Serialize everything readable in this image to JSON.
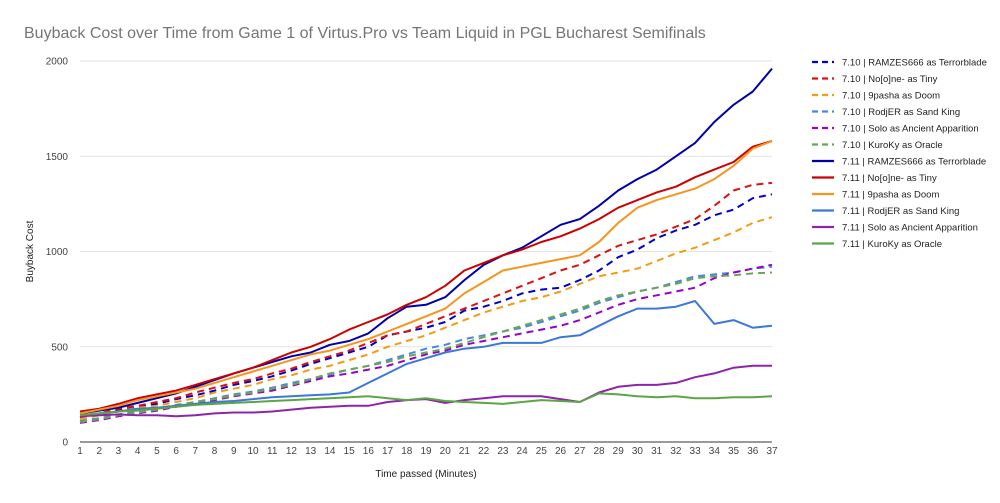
{
  "chart_data": {
    "type": "line",
    "title": "Buyback Cost over Time from Game 1 of Virtus.Pro vs Team Liquid in PGL Bucharest Semifinals",
    "xlabel": "Time passed (Minutes)",
    "ylabel": "Buyback Cost",
    "x": [
      1,
      2,
      3,
      4,
      5,
      6,
      7,
      8,
      9,
      10,
      11,
      12,
      13,
      14,
      15,
      16,
      17,
      18,
      19,
      20,
      21,
      22,
      23,
      24,
      25,
      26,
      27,
      28,
      29,
      30,
      31,
      32,
      33,
      34,
      35,
      36,
      37
    ],
    "ylim": [
      0,
      2000
    ],
    "yticks": [
      0,
      500,
      1000,
      1500,
      2000
    ],
    "grid": "horizontal",
    "legend": "right",
    "series": [
      {
        "name": "7.10 | RAMZES666 as Terrorblade",
        "color": "#0000cc",
        "dash": true,
        "values": [
          130,
          150,
          165,
          185,
          200,
          225,
          245,
          270,
          300,
          320,
          345,
          375,
          410,
          440,
          470,
          500,
          560,
          580,
          600,
          630,
          690,
          710,
          740,
          780,
          800,
          810,
          850,
          900,
          970,
          1010,
          1070,
          1110,
          1140,
          1190,
          1220,
          1280,
          1300
        ]
      },
      {
        "name": "7.10 | No[o]ne- as Tiny",
        "color": "#dd1111",
        "dash": true,
        "values": [
          130,
          150,
          175,
          190,
          210,
          230,
          260,
          285,
          310,
          330,
          360,
          385,
          420,
          450,
          480,
          520,
          560,
          580,
          620,
          660,
          700,
          740,
          780,
          820,
          860,
          900,
          930,
          980,
          1030,
          1060,
          1090,
          1130,
          1170,
          1240,
          1320,
          1350,
          1360
        ]
      },
      {
        "name": "7.10 | 9pasha as Doom",
        "color": "#f39c12",
        "dash": true,
        "values": [
          120,
          140,
          160,
          180,
          190,
          210,
          230,
          260,
          280,
          300,
          330,
          350,
          380,
          400,
          430,
          460,
          500,
          530,
          560,
          600,
          640,
          680,
          710,
          740,
          760,
          790,
          830,
          870,
          890,
          910,
          950,
          990,
          1020,
          1060,
          1100,
          1150,
          1180
        ]
      },
      {
        "name": "7.10 | RodjER as Sand King",
        "color": "#4a86e8",
        "dash": true,
        "values": [
          110,
          125,
          145,
          160,
          175,
          195,
          210,
          230,
          250,
          265,
          285,
          310,
          330,
          355,
          380,
          400,
          430,
          460,
          490,
          510,
          540,
          560,
          580,
          600,
          630,
          660,
          690,
          730,
          760,
          790,
          810,
          840,
          870,
          880,
          890,
          910,
          920
        ]
      },
      {
        "name": "7.10 | Solo as Ancient Apparition",
        "color": "#9900cc",
        "dash": true,
        "values": [
          100,
          115,
          135,
          150,
          165,
          185,
          200,
          220,
          240,
          255,
          270,
          295,
          320,
          345,
          360,
          380,
          400,
          430,
          460,
          480,
          510,
          530,
          550,
          570,
          590,
          610,
          640,
          680,
          720,
          750,
          770,
          790,
          810,
          860,
          890,
          910,
          930
        ]
      },
      {
        "name": "7.10 | KuroKy as Oracle",
        "color": "#6aa84f",
        "dash": true,
        "values": [
          105,
          120,
          140,
          155,
          170,
          190,
          210,
          225,
          245,
          260,
          280,
          300,
          330,
          360,
          380,
          400,
          420,
          450,
          470,
          490,
          520,
          550,
          580,
          610,
          640,
          670,
          700,
          740,
          770,
          790,
          810,
          830,
          860,
          870,
          875,
          885,
          890
        ]
      },
      {
        "name": "7.11 | RAMZES666 as Terrorblade",
        "color": "#0000aa",
        "dash": false,
        "values": [
          150,
          165,
          180,
          205,
          230,
          255,
          290,
          325,
          360,
          390,
          420,
          450,
          470,
          510,
          530,
          570,
          650,
          710,
          720,
          760,
          850,
          930,
          980,
          1020,
          1080,
          1140,
          1170,
          1240,
          1320,
          1380,
          1430,
          1500,
          1570,
          1680,
          1770,
          1840,
          1960
        ]
      },
      {
        "name": "7.11 | No[o]ne- as Tiny",
        "color": "#cc0000",
        "dash": false,
        "values": [
          160,
          175,
          200,
          230,
          250,
          270,
          300,
          330,
          360,
          390,
          430,
          470,
          500,
          540,
          590,
          630,
          670,
          720,
          760,
          820,
          900,
          940,
          980,
          1010,
          1050,
          1080,
          1120,
          1170,
          1230,
          1270,
          1310,
          1340,
          1390,
          1430,
          1470,
          1550,
          1580
        ]
      },
      {
        "name": "7.11 | 9pasha as Doom",
        "color": "#f7941d",
        "dash": false,
        "values": [
          150,
          170,
          190,
          220,
          240,
          260,
          280,
          310,
          340,
          370,
          400,
          430,
          460,
          480,
          510,
          540,
          580,
          620,
          660,
          700,
          780,
          840,
          900,
          920,
          940,
          960,
          980,
          1050,
          1150,
          1230,
          1270,
          1300,
          1330,
          1380,
          1450,
          1540,
          1580
        ]
      },
      {
        "name": "7.11 | RodjER as Sand King",
        "color": "#3c78d8",
        "dash": false,
        "values": [
          140,
          150,
          160,
          175,
          180,
          190,
          200,
          210,
          215,
          225,
          235,
          240,
          245,
          250,
          260,
          310,
          360,
          410,
          440,
          470,
          490,
          500,
          520,
          520,
          520,
          550,
          560,
          610,
          660,
          700,
          700,
          710,
          740,
          620,
          640,
          600,
          610
        ]
      },
      {
        "name": "7.11 | Solo as Ancient Apparition",
        "color": "#8e24aa",
        "dash": false,
        "values": [
          135,
          140,
          145,
          140,
          140,
          135,
          140,
          150,
          155,
          155,
          160,
          170,
          180,
          185,
          190,
          190,
          210,
          220,
          225,
          205,
          220,
          230,
          240,
          240,
          240,
          225,
          210,
          260,
          290,
          300,
          300,
          310,
          340,
          360,
          390,
          400,
          400
        ]
      },
      {
        "name": "7.11 | KuroKy as Oracle",
        "color": "#5ba546",
        "dash": false,
        "values": [
          140,
          150,
          160,
          165,
          175,
          185,
          195,
          200,
          205,
          210,
          215,
          220,
          225,
          230,
          235,
          240,
          230,
          220,
          230,
          215,
          210,
          205,
          200,
          210,
          220,
          215,
          210,
          255,
          250,
          240,
          235,
          240,
          230,
          230,
          235,
          235,
          240
        ]
      }
    ]
  }
}
